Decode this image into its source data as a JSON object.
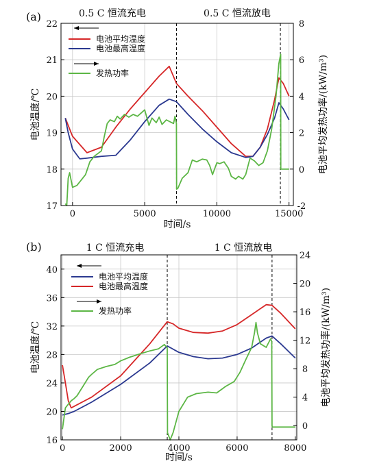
{
  "chart_data": [
    {
      "panel_label": "(a)",
      "type": "line",
      "phase_labels": [
        "0.5 C 恒流充电",
        "0.5 C 恒流放电"
      ],
      "xlabel": "时间/s",
      "ylabel": "电池温度/℃",
      "y2label": "电池平均发热功率/(kW/m³)",
      "xlim": [
        -800,
        15300
      ],
      "ylim": [
        17,
        22
      ],
      "y2lim": [
        -2,
        8
      ],
      "xticks": [
        0,
        5000,
        10000,
        15000
      ],
      "xtick_labels": [
        "0",
        "5000",
        "10000",
        "15000"
      ],
      "yticks": [
        17,
        18,
        19,
        20,
        21,
        22
      ],
      "ytick_labels": [
        "17",
        "18",
        "19",
        "20",
        "21",
        "22"
      ],
      "y2ticks": [
        -2,
        0,
        2,
        4,
        6,
        8
      ],
      "y2tick_labels": [
        "-2",
        "0",
        "2",
        "4",
        "6",
        "8"
      ],
      "vlines": [
        7200,
        14400
      ],
      "grid": true,
      "legend_position": "top-left",
      "series": [
        {
          "name": "电池平均温度",
          "color": "#d62728",
          "axis": "left",
          "x": [
            -500,
            0,
            1000,
            2000,
            3000,
            4000,
            5000,
            6000,
            6700,
            7200,
            8000,
            9000,
            10000,
            11000,
            12000,
            12500,
            13000,
            13500,
            14000,
            14300,
            14600,
            15000
          ],
          "y": [
            19.4,
            18.9,
            18.45,
            18.6,
            19.15,
            19.65,
            20.1,
            20.55,
            20.82,
            20.35,
            20.0,
            19.6,
            19.15,
            18.7,
            18.35,
            18.35,
            18.6,
            19.1,
            19.9,
            20.5,
            20.35,
            20.0
          ]
        },
        {
          "name": "电池最高温度",
          "color": "#2b3990",
          "axis": "left",
          "x": [
            -500,
            -300,
            0,
            500,
            1000,
            2000,
            3000,
            4000,
            5000,
            6000,
            6700,
            7200,
            8000,
            9000,
            10000,
            11000,
            12000,
            12500,
            13000,
            13500,
            14000,
            14300,
            14600,
            15000
          ],
          "y": [
            19.4,
            19.0,
            18.55,
            18.28,
            18.3,
            18.35,
            18.38,
            18.8,
            19.3,
            19.75,
            19.92,
            19.85,
            19.5,
            19.1,
            18.75,
            18.45,
            18.32,
            18.35,
            18.6,
            18.95,
            19.4,
            19.82,
            19.65,
            19.35
          ]
        },
        {
          "name": "发热功率",
          "color": "#5cb645",
          "axis": "right",
          "x": [
            -500,
            -400,
            -300,
            -200,
            0,
            300,
            600,
            900,
            1200,
            1500,
            2000,
            2200,
            2400,
            2600,
            2900,
            3100,
            3300,
            3600,
            3900,
            4200,
            4500,
            5000,
            5300,
            5500,
            5800,
            6000,
            6200,
            6500,
            7000,
            7100,
            7200,
            7210,
            7300,
            7600,
            8000,
            8300,
            8600,
            9000,
            9300,
            9500,
            9700,
            10000,
            10200,
            10500,
            10800,
            11000,
            11300,
            11500,
            11800,
            12000,
            12300,
            12600,
            12900,
            13200,
            13500,
            13800,
            14100,
            14300,
            14420,
            14430,
            14600,
            15000
          ],
          "y": [
            -1.9,
            -2.0,
            -0.5,
            -0.2,
            -1.0,
            -0.9,
            -0.6,
            -0.3,
            0.4,
            0.7,
            1.0,
            1.8,
            2.5,
            2.7,
            2.6,
            2.9,
            2.75,
            3.0,
            2.85,
            3.0,
            2.9,
            3.25,
            2.4,
            2.8,
            2.55,
            2.85,
            2.45,
            2.7,
            2.5,
            2.9,
            2.5,
            -1.1,
            -1.05,
            -0.5,
            -0.2,
            0.5,
            0.4,
            0.55,
            0.5,
            0.2,
            -0.3,
            0.35,
            0.3,
            0.4,
            0.05,
            -0.4,
            -0.55,
            -0.4,
            -0.55,
            -0.3,
            0.6,
            0.45,
            0.2,
            0.35,
            1.0,
            2.2,
            4.0,
            5.8,
            6.3,
            0.0,
            0.0,
            0.0
          ]
        }
      ]
    },
    {
      "panel_label": "(b)",
      "type": "line",
      "phase_labels": [
        "1 C 恒流充电",
        "1 C 恒流放电"
      ],
      "xlabel": "时间/s",
      "ylabel": "电池温度/℃",
      "y2label": "电池平均发热功率/(kW/m³)",
      "xlim": [
        -50,
        8050
      ],
      "ylim": [
        16,
        42
      ],
      "y2lim": [
        -2,
        24
      ],
      "xticks": [
        0,
        2000,
        4000,
        6000,
        8000
      ],
      "xtick_labels": [
        "0",
        "2000",
        "4000",
        "6000",
        "8000"
      ],
      "yticks": [
        16,
        20,
        24,
        28,
        32,
        36,
        40
      ],
      "ytick_labels": [
        "16",
        "20",
        "24",
        "28",
        "32",
        "36",
        "40"
      ],
      "y2ticks": [
        0,
        4,
        8,
        12,
        16,
        20,
        24
      ],
      "y2tick_labels": [
        "0",
        "4",
        "8",
        "12",
        "16",
        "20",
        "24"
      ],
      "vlines": [
        3600,
        7200
      ],
      "grid": true,
      "legend_position": "top-left",
      "series": [
        {
          "name": "电池平均温度",
          "color": "#2b3990",
          "axis": "left",
          "x": [
            0,
            200,
            400,
            1000,
            2000,
            3000,
            3600,
            4000,
            4500,
            5000,
            5500,
            6000,
            6500,
            7000,
            7200,
            7500,
            8000
          ],
          "y": [
            19.5,
            19.7,
            20.0,
            21.3,
            23.8,
            26.8,
            29.2,
            28.3,
            27.7,
            27.4,
            27.5,
            28.0,
            28.9,
            30.3,
            30.6,
            29.5,
            27.5
          ]
        },
        {
          "name": "电池最高温度",
          "color": "#d62728",
          "axis": "left",
          "x": [
            0,
            100,
            200,
            300,
            1000,
            2000,
            3000,
            3600,
            3800,
            4000,
            4500,
            5000,
            5500,
            6000,
            6500,
            7000,
            7200,
            7500,
            8000
          ],
          "y": [
            26.5,
            24.0,
            21.5,
            20.5,
            22.0,
            25.0,
            29.5,
            32.6,
            32.3,
            31.7,
            31.1,
            31.0,
            31.3,
            32.2,
            33.6,
            35.0,
            34.9,
            33.8,
            31.6
          ]
        },
        {
          "name": "发热功率",
          "color": "#5cb645",
          "axis": "right",
          "x": [
            0,
            100,
            200,
            300,
            400,
            500,
            700,
            900,
            1000,
            1200,
            1500,
            1800,
            2000,
            2300,
            2600,
            3000,
            3300,
            3500,
            3600,
            3610,
            3700,
            3800,
            4000,
            4300,
            4600,
            5000,
            5300,
            5600,
            5900,
            6100,
            6300,
            6500,
            6600,
            6650,
            6700,
            6800,
            7000,
            7150,
            7190,
            7200,
            7210,
            7500,
            8000
          ],
          "y": [
            -0.5,
            2.5,
            3.0,
            3.5,
            3.8,
            4.2,
            5.5,
            6.8,
            7.2,
            7.9,
            8.3,
            8.6,
            9.1,
            9.6,
            10.0,
            10.5,
            10.8,
            11.4,
            10.9,
            -1.0,
            -2.0,
            -1.0,
            2.0,
            4.0,
            4.5,
            4.7,
            4.6,
            5.5,
            6.2,
            7.5,
            9.3,
            11.0,
            13.1,
            14.5,
            13.0,
            11.5,
            11.0,
            12.2,
            11.8,
            0.0,
            -0.2,
            -0.2,
            -0.2
          ]
        }
      ]
    }
  ]
}
